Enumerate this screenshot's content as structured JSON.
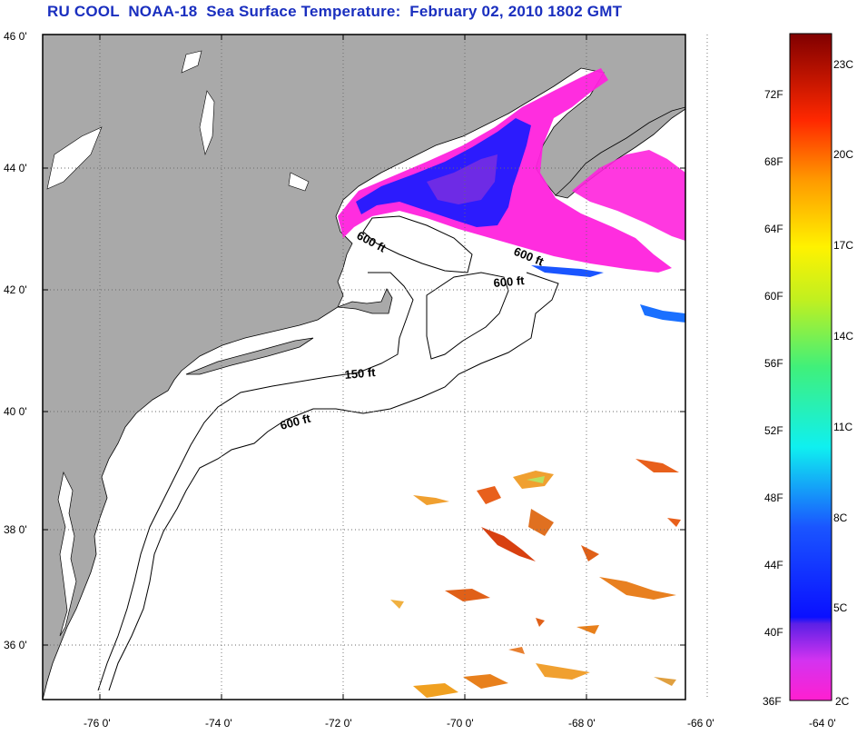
{
  "title": "RU COOL  NOAA-18  Sea Surface Temperature:  February 02, 2010 1802 GMT",
  "map": {
    "lat_ticks": [
      {
        "value": 46,
        "label": "46 0'"
      },
      {
        "value": 44,
        "label": "44 0'"
      },
      {
        "value": 42,
        "label": "42 0'"
      },
      {
        "value": 40,
        "label": "40 0'"
      },
      {
        "value": 38,
        "label": "38 0'"
      },
      {
        "value": 36,
        "label": "36 0'"
      }
    ],
    "lon_ticks": [
      {
        "value": -76,
        "label": "-76 0'"
      },
      {
        "value": -74,
        "label": "-74 0'"
      },
      {
        "value": -72,
        "label": "-72 0'"
      },
      {
        "value": -70,
        "label": "-70 0'"
      },
      {
        "value": -68,
        "label": "-68 0'"
      },
      {
        "value": -66,
        "label": "-66 0'"
      },
      {
        "value": -64,
        "label": "-64 0'"
      }
    ],
    "contour_labels": [
      "600 ft",
      "600 ft",
      "600 ft",
      "150 ft",
      "600 ft"
    ]
  },
  "colorbar": {
    "fahrenheit_labels": [
      {
        "value": 72,
        "label": "72F"
      },
      {
        "value": 68,
        "label": "68F"
      },
      {
        "value": 64,
        "label": "64F"
      },
      {
        "value": 60,
        "label": "60F"
      },
      {
        "value": 56,
        "label": "56F"
      },
      {
        "value": 52,
        "label": "52F"
      },
      {
        "value": 48,
        "label": "48F"
      },
      {
        "value": 44,
        "label": "44F"
      },
      {
        "value": 40,
        "label": "40F"
      },
      {
        "value": 36,
        "label": "36F"
      }
    ],
    "celsius_labels": [
      {
        "value": 23,
        "label": "23C"
      },
      {
        "value": 20,
        "label": "20C"
      },
      {
        "value": 17,
        "label": "17C"
      },
      {
        "value": 14,
        "label": "14C"
      },
      {
        "value": 11,
        "label": "11C"
      },
      {
        "value": 8,
        "label": "8C"
      },
      {
        "value": 5,
        "label": "5C"
      },
      {
        "value": 2,
        "label": "2C"
      }
    ],
    "colors": {
      "land": "#a9a9a9",
      "ocean": "#ffffff",
      "cold": "#ff22dd",
      "cool": "#1a1aff",
      "warm": "#e8601c"
    }
  }
}
